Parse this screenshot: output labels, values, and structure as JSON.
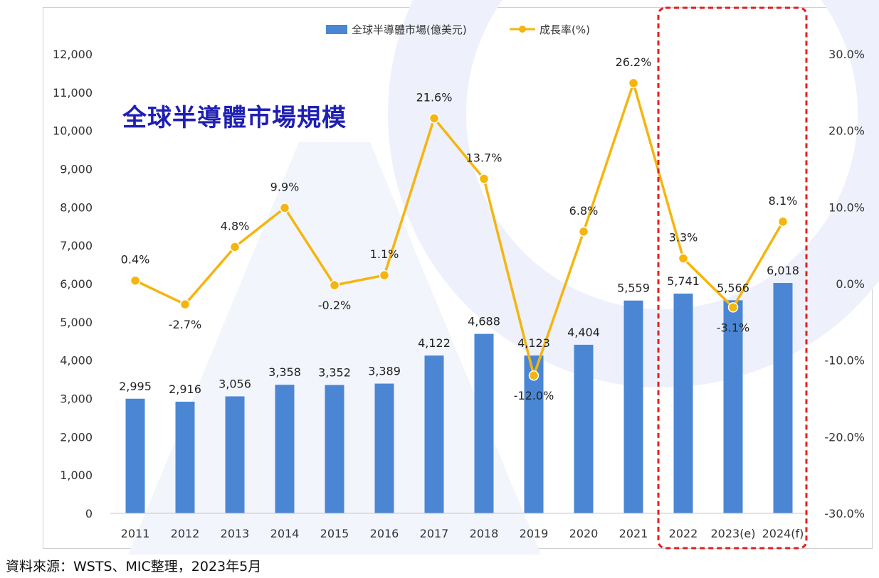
{
  "title": "全球半導體市場規模",
  "source": "資料來源：WSTS、MIC整理，2023年5月",
  "colors": {
    "bar": "#4a86d4",
    "line": "#f5b50f",
    "highlight": "#e02020",
    "title": "#1f1fb4"
  },
  "chart_data": {
    "type": "bar+line",
    "categories": [
      "2011",
      "2012",
      "2013",
      "2014",
      "2015",
      "2016",
      "2017",
      "2018",
      "2019",
      "2020",
      "2021",
      "2022",
      "2023(e)",
      "2024(f)"
    ],
    "series": [
      {
        "name": "全球半導體市場(億美元)",
        "type": "bar",
        "axis": "left",
        "values": [
          2995,
          2916,
          3056,
          3358,
          3352,
          3389,
          4122,
          4688,
          4123,
          4404,
          5559,
          5741,
          5566,
          6018
        ],
        "labels": [
          "2,995",
          "2,916",
          "3,056",
          "3,358",
          "3,352",
          "3,389",
          "4,122",
          "4,688",
          "4,123",
          "4,404",
          "5,559",
          "5,741",
          "5,566",
          "6,018"
        ]
      },
      {
        "name": "成長率(%)",
        "type": "line",
        "axis": "right",
        "values": [
          0.4,
          -2.7,
          4.8,
          9.9,
          -0.2,
          1.1,
          21.6,
          13.7,
          -12.0,
          6.8,
          26.2,
          3.3,
          -3.1,
          8.1
        ],
        "labels": [
          "0.4%",
          "-2.7%",
          "4.8%",
          "9.9%",
          "-0.2%",
          "1.1%",
          "21.6%",
          "13.7%",
          "-12.0%",
          "6.8%",
          "26.2%",
          "3.3%",
          "-3.1%",
          "8.1%"
        ]
      }
    ],
    "y_left": {
      "range": [
        0,
        12000
      ],
      "ticks": [
        "0",
        "1,000",
        "2,000",
        "3,000",
        "4,000",
        "5,000",
        "6,000",
        "7,000",
        "8,000",
        "9,000",
        "10,000",
        "11,000",
        "12,000"
      ]
    },
    "y_right": {
      "range": [
        -30,
        30
      ],
      "ticks": [
        "-30.0%",
        "-20.0%",
        "-10.0%",
        "0.0%",
        "10.0%",
        "20.0%",
        "30.0%"
      ]
    },
    "legend_position": "top-center",
    "grid": false,
    "highlight_categories": [
      "2022",
      "2023(e)",
      "2024(f)"
    ]
  }
}
